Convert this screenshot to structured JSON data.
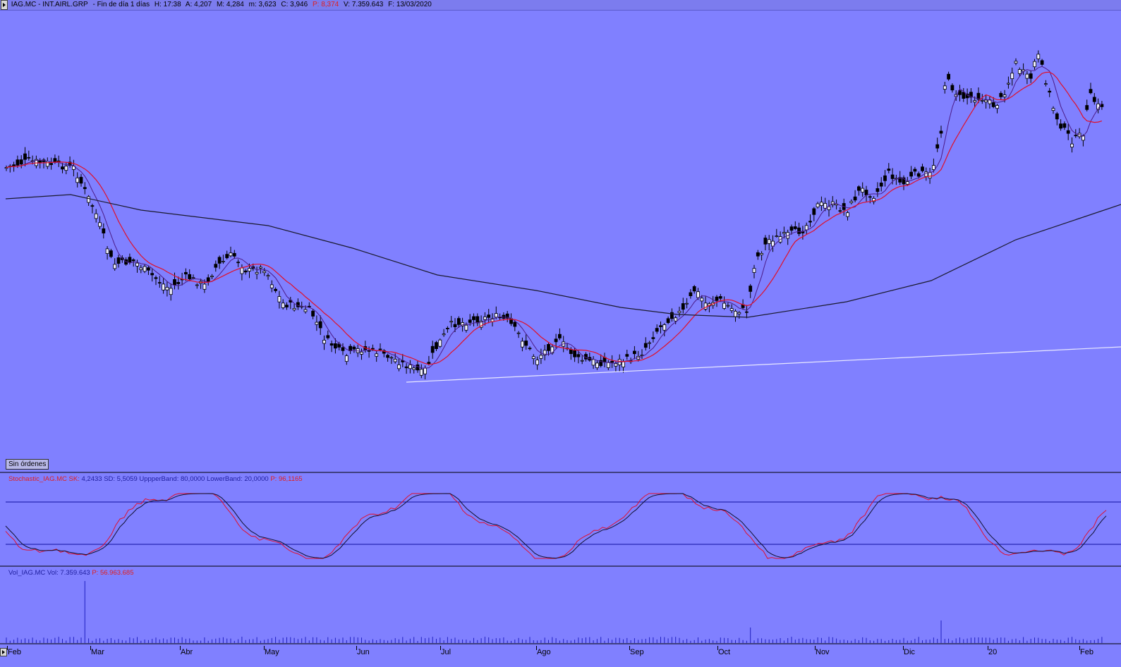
{
  "header": {
    "symbol": "IAG.MC - INT.AIRL.GRP",
    "period": "Fin de día 1 días",
    "high_label": "H:",
    "high": "17:38",
    "open_label": "A:",
    "open": "4,207",
    "max_label": "M:",
    "max": "4,284",
    "min_label": "m:",
    "min": "3,623",
    "close_label": "C:",
    "close": "3,946",
    "p_label": "P:",
    "p": "8,374",
    "vol_label": "V:",
    "vol": "7.359.643",
    "date_label": "F:",
    "date": "13/03/2020"
  },
  "orders_button": "Sin órdenes",
  "stochastic": {
    "name": "Stochastic_IAG.MC",
    "sk_label": "SK:",
    "sk": "4,2433",
    "sd_label": "SD:",
    "sd": "5,5059",
    "upper_label": "UppperBand:",
    "upper": "80,0000",
    "lower_label": "LowerBand:",
    "lower": "20,0000",
    "p_label": "P:",
    "p": "96,1165"
  },
  "volume": {
    "name": "Vol_IAG.MC",
    "vol_label": "Vol:",
    "vol": "7.359.643",
    "p_label": "P:",
    "p": "56.963.685"
  },
  "x_axis": {
    "labels": [
      "Feb",
      "Mar",
      "Abr",
      "May",
      "Jun",
      "Jul",
      "Ago",
      "Sep",
      "Oct",
      "Nov",
      "Dic",
      "20",
      "Feb"
    ]
  },
  "colors": {
    "background": "#8080ff",
    "candle": "#000000",
    "ma_fast": "#4b1c8a",
    "ma_mid": "#e0102a",
    "ma_slow": "#1a1a2e",
    "trendline": "#e8e8ff",
    "stoch_k": "#e01030",
    "stoch_d": "#101030",
    "band": "#1010a0",
    "volume": "#2020c0"
  }
}
